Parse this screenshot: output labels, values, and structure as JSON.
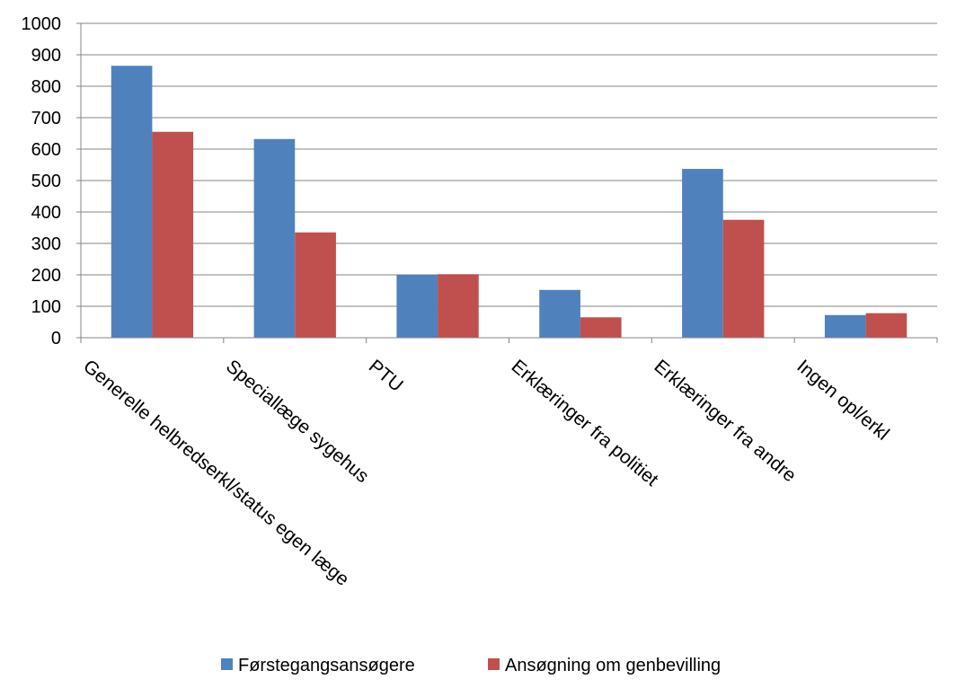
{
  "chart_data": {
    "type": "bar",
    "title": "",
    "xlabel": "",
    "ylabel": "",
    "ylim": [
      0,
      1000
    ],
    "yticks": [
      0,
      100,
      200,
      300,
      400,
      500,
      600,
      700,
      800,
      900,
      1000
    ],
    "grid": true,
    "legend_position": "bottom",
    "categories": [
      "Generelle helbredserkl/status egen læge",
      "Speciallæge sygehus",
      "PTU",
      "Erklæringer fra politiet",
      "Erklæringer fra andre",
      "Ingen opl/erkl"
    ],
    "series": [
      {
        "name": "Førstegangsansøgere",
        "color": "#4f81bd",
        "values": [
          865,
          632,
          200,
          152,
          537,
          72
        ]
      },
      {
        "name": "Ansøgning om genbevilling",
        "color": "#c0504d",
        "values": [
          655,
          335,
          202,
          65,
          375,
          78
        ]
      }
    ]
  }
}
